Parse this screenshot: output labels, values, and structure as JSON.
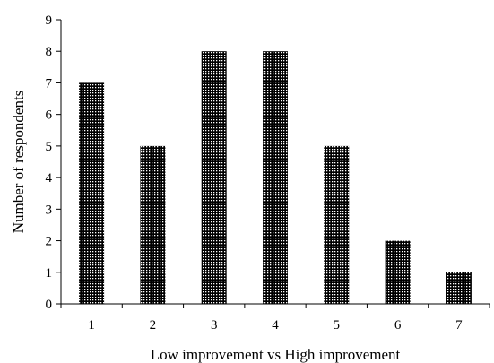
{
  "chart_data": {
    "type": "bar",
    "title": "",
    "xlabel": "Low improvement vs High improvement",
    "ylabel": "Number of respondents",
    "categories": [
      "1",
      "2",
      "3",
      "4",
      "5",
      "6",
      "7"
    ],
    "values": [
      7,
      5,
      8,
      8,
      5,
      2,
      1
    ],
    "ylim": [
      0,
      9
    ],
    "yticks": [
      "0",
      "1",
      "2",
      "3",
      "4",
      "5",
      "6",
      "7",
      "8",
      "9"
    ],
    "grid": false,
    "legend": "none",
    "bar_fill": "dotted-pattern",
    "colors": {
      "bar_base": "#000000",
      "bar_dots": "#ffffff",
      "axis": "#000000"
    }
  }
}
